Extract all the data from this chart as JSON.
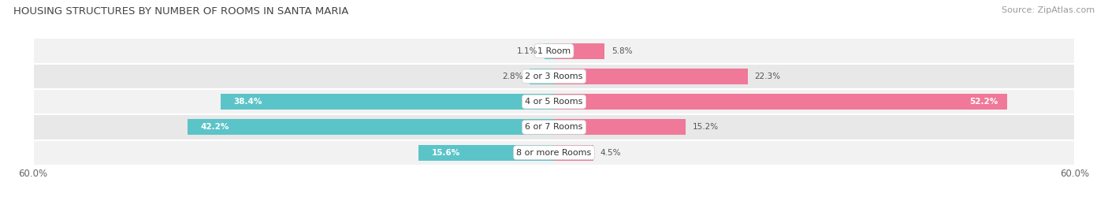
{
  "title": "HOUSING STRUCTURES BY NUMBER OF ROOMS IN SANTA MARIA",
  "source": "Source: ZipAtlas.com",
  "categories": [
    "1 Room",
    "2 or 3 Rooms",
    "4 or 5 Rooms",
    "6 or 7 Rooms",
    "8 or more Rooms"
  ],
  "owner_values": [
    1.1,
    2.8,
    38.4,
    42.2,
    15.6
  ],
  "renter_values": [
    5.8,
    22.3,
    52.2,
    15.2,
    4.5
  ],
  "owner_color": "#5BC4C8",
  "renter_color": "#F07898",
  "row_bg_even": "#F2F2F2",
  "row_bg_odd": "#E8E8E8",
  "axis_max": 60.0,
  "bar_height": 0.62,
  "title_fontsize": 9.5,
  "source_fontsize": 8,
  "tick_fontsize": 8.5,
  "label_fontsize": 8,
  "value_fontsize": 7.5,
  "legend_fontsize": 8.5,
  "owner_inside_threshold": 5,
  "renter_inside_threshold": 5
}
